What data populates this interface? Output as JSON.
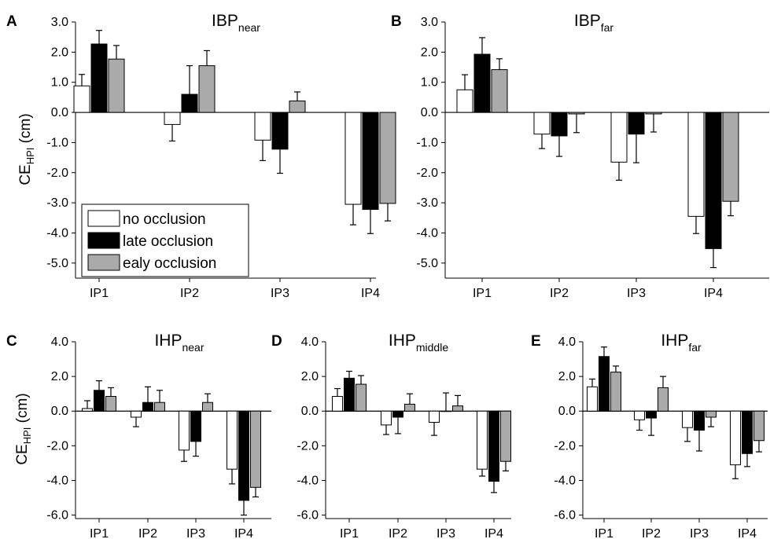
{
  "figure": {
    "colors": {
      "no_occlusion": "#ffffff",
      "late_occlusion": "#000000",
      "early_occlusion": "#aaaaaa",
      "axis": "#000000"
    },
    "legend": {
      "items": [
        {
          "label": "no occlusion",
          "series_index": 0
        },
        {
          "label": "late occlusion",
          "series_index": 1
        },
        {
          "label": "ealy occlusion",
          "series_index": 2
        }
      ]
    }
  },
  "chart_data": [
    {
      "panel": "A",
      "type": "bar",
      "title": "IBP",
      "title_subscript": "near",
      "ylabel": "CE",
      "ylabel_subscript": "HPI",
      "ylabel_suffix": " (cm)",
      "categories": [
        "IP1",
        "IP2",
        "IP3",
        "IP4"
      ],
      "ylim": [
        -5.5,
        3.0
      ],
      "yticks": [
        3.0,
        2.0,
        1.0,
        0.0,
        -1.0,
        -2.0,
        -3.0,
        -4.0,
        -5.0
      ],
      "ytick_labels": [
        "3.0",
        "2.0",
        "1.0",
        "0.0",
        "-1.0",
        "-2.0",
        "-3.0",
        "-4.0",
        "-5.0"
      ],
      "legend": "bottom-left",
      "series": [
        {
          "values": [
            0.88,
            -0.4,
            -0.92,
            -3.05
          ],
          "errors": [
            0.38,
            0.55,
            0.68,
            0.68
          ]
        },
        {
          "values": [
            2.27,
            0.6,
            -1.22,
            -3.22
          ],
          "errors": [
            0.45,
            0.95,
            0.8,
            0.8
          ]
        },
        {
          "values": [
            1.77,
            1.55,
            0.38,
            -3.02
          ],
          "errors": [
            0.45,
            0.5,
            0.3,
            0.58
          ]
        }
      ]
    },
    {
      "panel": "B",
      "type": "bar",
      "title": "IBP",
      "title_subscript": "far",
      "ylabel": "",
      "categories": [
        "IP1",
        "IP2",
        "IP3",
        "IP4"
      ],
      "ylim": [
        -5.5,
        3.0
      ],
      "yticks": [
        3.0,
        2.0,
        1.0,
        0.0,
        -1.0,
        -2.0,
        -3.0,
        -4.0,
        -5.0
      ],
      "ytick_labels": [
        "3.0",
        "2.0",
        "1.0",
        "0.0",
        "-1.0",
        "-2.0",
        "-3.0",
        "-4.0",
        "-5.0"
      ],
      "series": [
        {
          "values": [
            0.75,
            -0.72,
            -1.65,
            -3.45
          ],
          "errors": [
            0.5,
            0.48,
            0.6,
            0.57
          ]
        },
        {
          "values": [
            1.93,
            -0.78,
            -0.72,
            -4.52
          ],
          "errors": [
            0.55,
            0.68,
            0.95,
            0.63
          ]
        },
        {
          "values": [
            1.42,
            -0.05,
            -0.05,
            -2.95
          ],
          "errors": [
            0.36,
            0.62,
            0.6,
            0.48
          ]
        }
      ]
    },
    {
      "panel": "C",
      "type": "bar",
      "title": "IHP",
      "title_subscript": "near",
      "ylabel": "CE",
      "ylabel_subscript": "HPI",
      "ylabel_suffix": " (cm)",
      "categories": [
        "IP1",
        "IP2",
        "IP3",
        "IP4"
      ],
      "ylim": [
        -6.2,
        4.0
      ],
      "yticks": [
        4.0,
        2.0,
        0.0,
        -2.0,
        -4.0,
        -6.0
      ],
      "ytick_labels": [
        "4.0",
        "2.0",
        "0.0",
        "-2.0",
        "-4.0",
        "-6.0"
      ],
      "series": [
        {
          "values": [
            0.15,
            -0.35,
            -2.25,
            -3.35
          ],
          "errors": [
            0.45,
            0.55,
            0.65,
            0.85
          ]
        },
        {
          "values": [
            1.2,
            0.5,
            -1.75,
            -5.15
          ],
          "errors": [
            0.55,
            0.9,
            0.85,
            0.85
          ]
        },
        {
          "values": [
            0.85,
            0.5,
            0.5,
            -4.4
          ],
          "errors": [
            0.5,
            0.7,
            0.5,
            0.55
          ]
        }
      ]
    },
    {
      "panel": "D",
      "type": "bar",
      "title": "IHP",
      "title_subscript": "middle",
      "ylabel": "",
      "categories": [
        "IP1",
        "IP2",
        "IP3",
        "IP4"
      ],
      "ylim": [
        -6.2,
        4.0
      ],
      "yticks": [
        4.0,
        2.0,
        0.0,
        -2.0,
        -4.0,
        -6.0
      ],
      "ytick_labels": [
        "4.0",
        "2.0",
        "0.0",
        "-2.0",
        "-4.0",
        "-6.0"
      ],
      "series": [
        {
          "values": [
            0.85,
            -0.8,
            -0.65,
            -3.35
          ],
          "errors": [
            0.45,
            0.55,
            0.75,
            0.4
          ]
        },
        {
          "values": [
            1.9,
            -0.35,
            0.0,
            -4.05
          ],
          "errors": [
            0.4,
            0.95,
            1.05,
            0.65
          ]
        },
        {
          "values": [
            1.55,
            0.4,
            0.3,
            -2.9
          ],
          "errors": [
            0.5,
            0.6,
            0.6,
            0.55
          ]
        }
      ]
    },
    {
      "panel": "E",
      "type": "bar",
      "title": "IHP",
      "title_subscript": "far",
      "ylabel": "",
      "categories": [
        "IP1",
        "IP2",
        "IP3",
        "IP4"
      ],
      "ylim": [
        -6.2,
        4.0
      ],
      "yticks": [
        4.0,
        2.0,
        0.0,
        -2.0,
        -4.0,
        -6.0
      ],
      "ytick_labels": [
        "4.0",
        "2.0",
        "0.0",
        "-2.0",
        "-4.0",
        "-6.0"
      ],
      "series": [
        {
          "values": [
            1.4,
            -0.5,
            -0.95,
            -3.1
          ],
          "errors": [
            0.45,
            0.6,
            0.8,
            0.8
          ]
        },
        {
          "values": [
            3.15,
            -0.4,
            -1.1,
            -2.45
          ],
          "errors": [
            0.55,
            1.0,
            1.2,
            0.75
          ]
        },
        {
          "values": [
            2.25,
            1.35,
            -0.35,
            -1.7
          ],
          "errors": [
            0.35,
            0.65,
            0.55,
            0.65
          ]
        }
      ]
    }
  ]
}
